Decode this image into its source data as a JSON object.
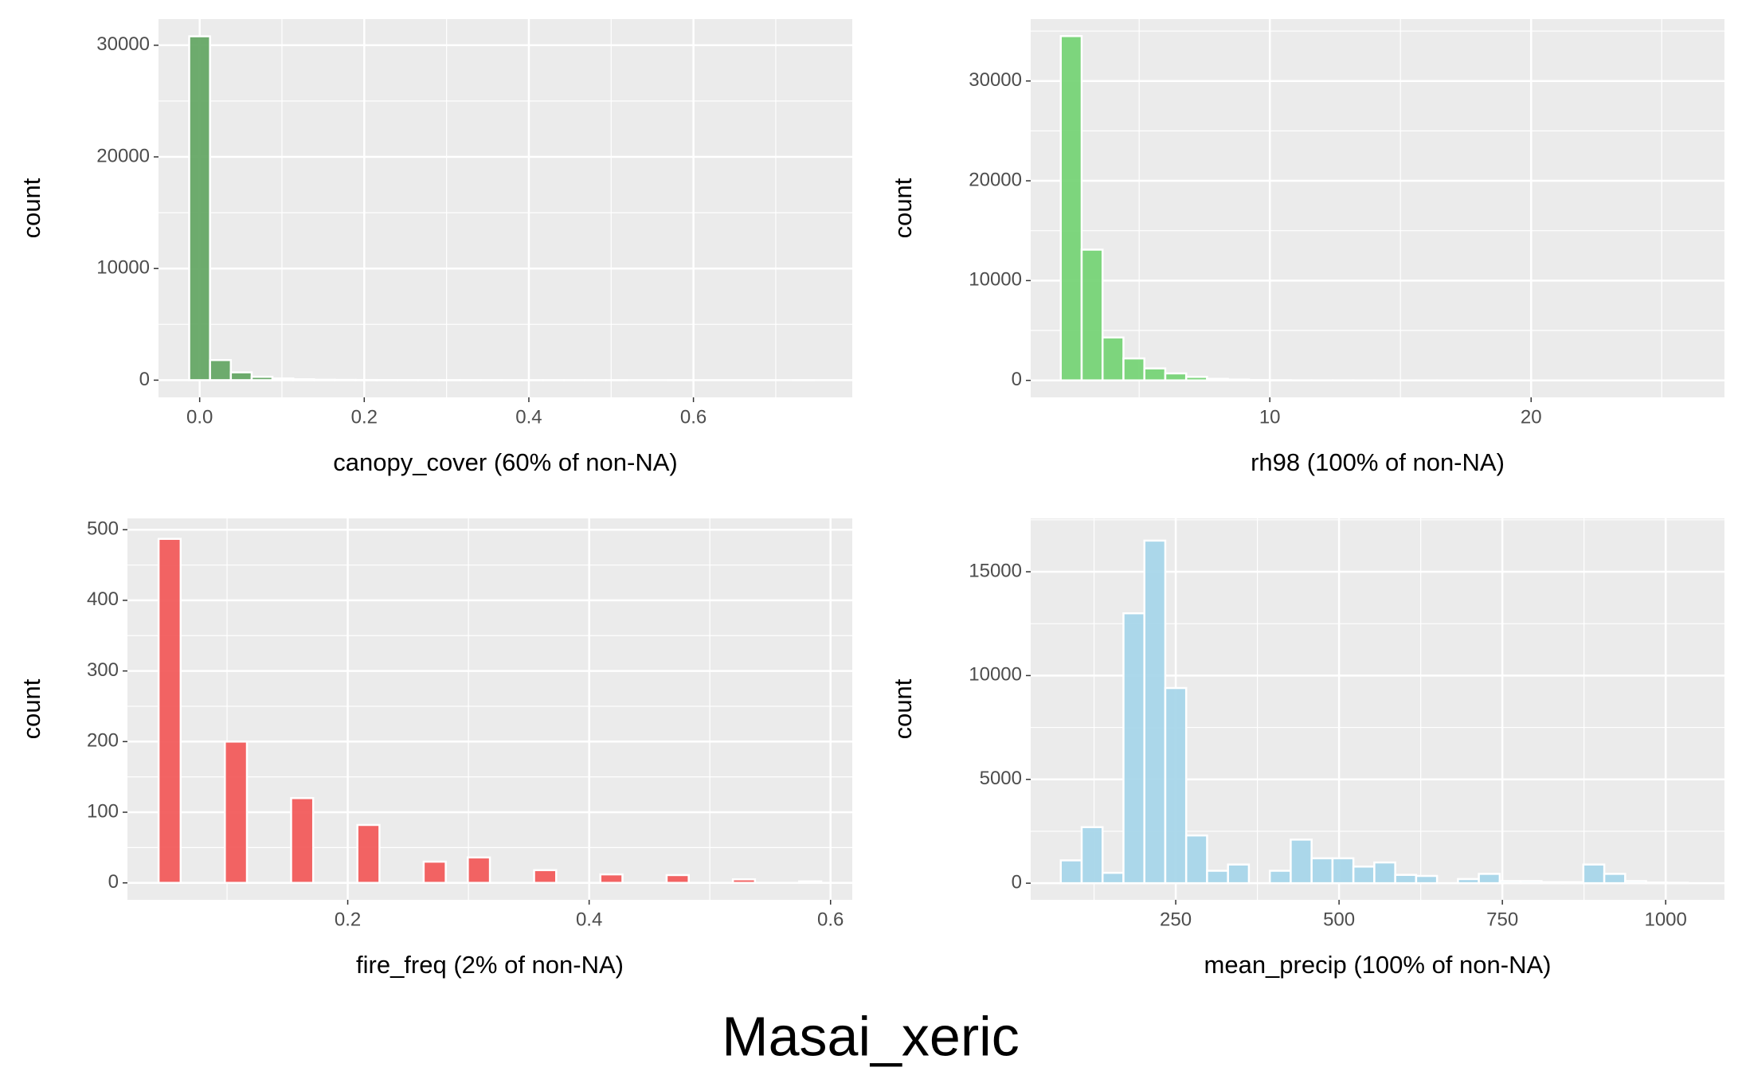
{
  "title": "Masai_xeric",
  "chart_data": [
    {
      "type": "histogram",
      "xlabel": "canopy_cover (60% of non-NA)",
      "ylabel": "count",
      "color": "#66a866",
      "grid": true,
      "bins": [
        -0.0127,
        0.0126,
        0.0379,
        0.0632,
        0.0885,
        0.1138,
        0.1391,
        0.1644,
        0.1897,
        0.215,
        0.2403,
        0.2656,
        0.2909,
        0.3162,
        0.3415,
        0.3668,
        0.3921,
        0.4174,
        0.4427,
        0.468,
        0.4933,
        0.5186,
        0.5439,
        0.5692,
        0.5945,
        0.6198,
        0.6451,
        0.6704,
        0.6957,
        0.721,
        0.7463
      ],
      "values": [
        30800,
        1800,
        700,
        300,
        150,
        80,
        40,
        25,
        15,
        10,
        8,
        5,
        4,
        3,
        2,
        2,
        1,
        1,
        1,
        1,
        1,
        0,
        0,
        1,
        0,
        0,
        0,
        0,
        0,
        1
      ],
      "xlim": [
        -0.05,
        0.793
      ],
      "xticks": [
        {
          "value": 0,
          "label": "0.0"
        },
        0.2,
        0.4,
        0.6
      ],
      "ylim": [
        -1540,
        32340
      ],
      "yticks": [
        0,
        10000,
        20000,
        30000
      ]
    },
    {
      "type": "histogram",
      "xlabel": "rh98 (100% of non-NA)",
      "ylabel": "count",
      "color": "#77d477",
      "grid": true,
      "bins": [
        2.0,
        2.8,
        3.6,
        4.4,
        5.2,
        6.0,
        6.8,
        7.6,
        8.4,
        9.2,
        10.0,
        10.8,
        11.6,
        12.4,
        13.2,
        14.0,
        14.8,
        15.6,
        16.4,
        17.2,
        18.0,
        18.8,
        19.6,
        20.4,
        21.2,
        22.0,
        22.8,
        23.6,
        24.4,
        25.2,
        26.0
      ],
      "values": [
        34500,
        13100,
        4300,
        2200,
        1200,
        700,
        350,
        150,
        80,
        40,
        20,
        10,
        8,
        5,
        3,
        2,
        2,
        1,
        1,
        1,
        0,
        1,
        0,
        0,
        0,
        0,
        0,
        0,
        0,
        1
      ],
      "xlim": [
        0.85,
        27.4
      ],
      "xticks": [
        10,
        20
      ],
      "ylim": [
        -1700,
        36200
      ],
      "yticks": [
        0,
        10000,
        20000,
        30000
      ]
    },
    {
      "type": "histogram",
      "xlabel": "fire_freq (2% of non-NA)",
      "ylabel": "count",
      "color": "#f25c5c",
      "grid": true,
      "bins": [
        0.0433,
        0.0616,
        0.0799,
        0.0982,
        0.1165,
        0.1348,
        0.1531,
        0.1714,
        0.1897,
        0.208,
        0.2263,
        0.2446,
        0.2629,
        0.2812,
        0.2995,
        0.3178,
        0.3361,
        0.3544,
        0.3727,
        0.391,
        0.4093,
        0.4276,
        0.4459,
        0.4642,
        0.4825,
        0.5008,
        0.5191,
        0.5374,
        0.5557,
        0.574,
        0.5923
      ],
      "values": [
        487,
        0,
        0,
        200,
        0,
        0,
        120,
        0,
        0,
        82,
        0,
        0,
        30,
        0,
        36,
        0,
        0,
        18,
        0,
        0,
        12,
        0,
        0,
        11,
        0,
        0,
        5,
        0,
        0,
        2
      ],
      "xlim": [
        0.0175,
        0.618
      ],
      "xticks": [
        0.2,
        0.4,
        0.6
      ],
      "ylim": [
        -24,
        516
      ],
      "yticks": [
        0,
        100,
        200,
        300,
        400,
        500
      ]
    },
    {
      "type": "histogram",
      "xlabel": "mean_precip (100% of non-NA)",
      "ylabel": "count",
      "color": "#a8d6ea",
      "grid": true,
      "bins": [
        74,
        106,
        138,
        170,
        202,
        234,
        266,
        298,
        330,
        362,
        394,
        426,
        458,
        490,
        522,
        554,
        586,
        618,
        650,
        682,
        714,
        746,
        778,
        810,
        842,
        874,
        906,
        938,
        970,
        1002,
        1034
      ],
      "values": [
        1100,
        2700,
        500,
        13000,
        16500,
        9400,
        2300,
        600,
        900,
        0,
        600,
        2100,
        1200,
        1200,
        800,
        1000,
        400,
        350,
        0,
        200,
        450,
        100,
        100,
        50,
        50,
        900,
        450,
        100,
        30,
        20
      ],
      "xlim": [
        28,
        1090
      ],
      "xticks": [
        250,
        500,
        750,
        1000
      ],
      "ylim": [
        -800,
        17570
      ],
      "yticks": [
        0,
        5000,
        10000,
        15000
      ]
    }
  ]
}
